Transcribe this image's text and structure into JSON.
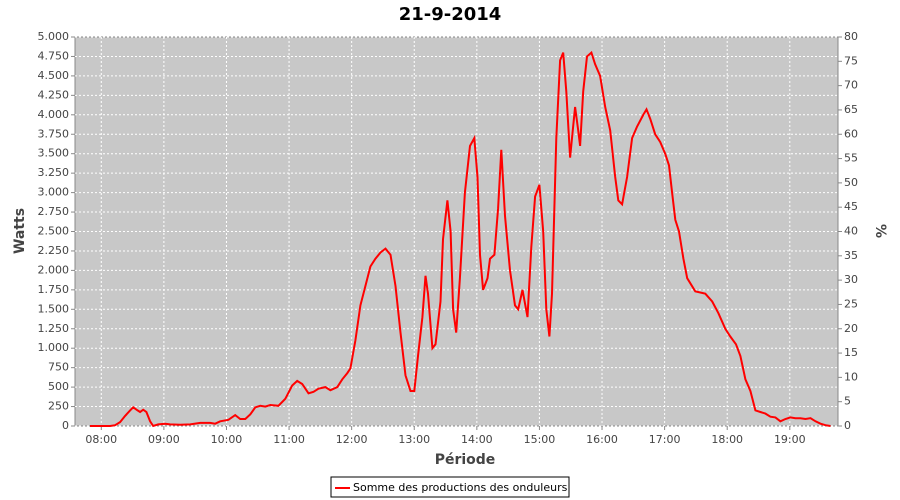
{
  "chart_data": {
    "type": "line",
    "title": "21-9-2014",
    "x_label": "Période",
    "y_label": "Watts",
    "y2_label": "%",
    "x": [
      7.82,
      8.14,
      8.22,
      8.3,
      8.38,
      8.46,
      8.51,
      8.58,
      8.62,
      8.67,
      8.72,
      8.78,
      8.83,
      8.91,
      9.02,
      9.1,
      9.26,
      9.42,
      9.58,
      9.74,
      9.82,
      9.9,
      10.03,
      10.14,
      10.22,
      10.3,
      10.38,
      10.46,
      10.54,
      10.62,
      10.7,
      10.83,
      10.94,
      11.05,
      11.13,
      11.21,
      11.31,
      11.39,
      11.47,
      11.58,
      11.66,
      11.77,
      11.85,
      11.93,
      11.98,
      12.06,
      12.14,
      12.22,
      12.3,
      12.38,
      12.46,
      12.54,
      12.62,
      12.7,
      12.78,
      12.86,
      12.94,
      13.0,
      13.06,
      13.13,
      13.18,
      13.22,
      13.29,
      13.34,
      13.42,
      13.46,
      13.53,
      13.58,
      13.62,
      13.67,
      13.73,
      13.81,
      13.89,
      13.96,
      14.01,
      14.05,
      14.1,
      14.17,
      14.21,
      14.28,
      14.34,
      14.39,
      14.45,
      14.53,
      14.61,
      14.66,
      14.73,
      14.81,
      14.87,
      14.93,
      15.0,
      15.06,
      15.11,
      15.16,
      15.2,
      15.27,
      15.33,
      15.38,
      15.43,
      15.49,
      15.52,
      15.57,
      15.62,
      15.65,
      15.7,
      15.76,
      15.83,
      15.89,
      15.97,
      16.05,
      16.13,
      16.21,
      16.26,
      16.32,
      16.4,
      16.48,
      16.56,
      16.66,
      16.71,
      16.77,
      16.85,
      16.93,
      17.01,
      17.07,
      17.12,
      17.17,
      17.23,
      17.3,
      17.36,
      17.49,
      17.65,
      17.76,
      17.86,
      17.97,
      18.05,
      18.14,
      18.21,
      18.29,
      18.37,
      18.45,
      18.53,
      18.61,
      18.69,
      18.77,
      18.85,
      18.93,
      19.01,
      19.09,
      19.17,
      19.25,
      19.33,
      19.41,
      19.49,
      19.57,
      19.65
    ],
    "series": [
      {
        "name": "Somme des productions des onduleurs",
        "color": "#ff0000",
        "values": [
          0,
          0,
          10,
          50,
          130,
          200,
          240,
          200,
          180,
          210,
          180,
          60,
          0,
          20,
          30,
          20,
          15,
          20,
          40,
          40,
          30,
          60,
          80,
          140,
          90,
          90,
          150,
          240,
          260,
          250,
          270,
          260,
          350,
          520,
          580,
          540,
          420,
          440,
          480,
          500,
          460,
          500,
          600,
          680,
          740,
          1100,
          1550,
          1800,
          2050,
          2150,
          2230,
          2280,
          2200,
          1800,
          1200,
          650,
          450,
          450,
          900,
          1400,
          1930,
          1700,
          1000,
          1050,
          1600,
          2400,
          2900,
          2500,
          1500,
          1200,
          1900,
          3000,
          3600,
          3700,
          3200,
          2200,
          1750,
          1900,
          2150,
          2200,
          2800,
          3550,
          2700,
          2000,
          1550,
          1500,
          1750,
          1400,
          2300,
          2950,
          3100,
          2500,
          1500,
          1150,
          1700,
          3700,
          4700,
          4800,
          4300,
          3450,
          3700,
          4100,
          3800,
          3600,
          4300,
          4750,
          4800,
          4650,
          4500,
          4100,
          3800,
          3200,
          2900,
          2850,
          3200,
          3700,
          3850,
          4000,
          4070,
          3950,
          3750,
          3650,
          3500,
          3350,
          3000,
          2650,
          2500,
          2150,
          1900,
          1730,
          1700,
          1600,
          1450,
          1250,
          1150,
          1050,
          900,
          600,
          450,
          200,
          180,
          160,
          120,
          110,
          60,
          90,
          110,
          100,
          100,
          90,
          100,
          60,
          30,
          10,
          0
        ]
      }
    ],
    "xlim": [
      7.58,
      19.77
    ],
    "xticks": [
      {
        "value": 8,
        "label": "08:00"
      },
      {
        "value": 9,
        "label": "09:00"
      },
      {
        "value": 10,
        "label": "10:00"
      },
      {
        "value": 11,
        "label": "11:00"
      },
      {
        "value": 12,
        "label": "12:00"
      },
      {
        "value": 13,
        "label": "13:00"
      },
      {
        "value": 14,
        "label": "14:00"
      },
      {
        "value": 15,
        "label": "15:00"
      },
      {
        "value": 16,
        "label": "16:00"
      },
      {
        "value": 17,
        "label": "17:00"
      },
      {
        "value": 18,
        "label": "18:00"
      },
      {
        "value": 19,
        "label": "19:00"
      }
    ],
    "ylim": [
      0,
      5000
    ],
    "yticks": [
      0,
      250,
      500,
      750,
      {
        "value": 1000,
        "label": "1.000"
      },
      {
        "value": 1250,
        "label": "1.250"
      },
      {
        "value": 1500,
        "label": "1.500"
      },
      {
        "value": 1750,
        "label": "1.750"
      },
      {
        "value": 2000,
        "label": "2.000"
      },
      {
        "value": 2250,
        "label": "2.250"
      },
      {
        "value": 2500,
        "label": "2.500"
      },
      {
        "value": 2750,
        "label": "2.750"
      },
      {
        "value": 3000,
        "label": "3.000"
      },
      {
        "value": 3250,
        "label": "3.250"
      },
      {
        "value": 3500,
        "label": "3.500"
      },
      {
        "value": 3750,
        "label": "3.750"
      },
      {
        "value": 4000,
        "label": "4.000"
      },
      {
        "value": 4250,
        "label": "4.250"
      },
      {
        "value": 4500,
        "label": "4.500"
      },
      {
        "value": 4750,
        "label": "4.750"
      },
      {
        "value": 5000,
        "label": "5.000"
      }
    ],
    "y2lim": [
      0,
      80
    ],
    "y2ticks": [
      0,
      5,
      10,
      15,
      20,
      25,
      30,
      35,
      40,
      45,
      50,
      55,
      60,
      65,
      70,
      75,
      80
    ],
    "grid": true
  }
}
